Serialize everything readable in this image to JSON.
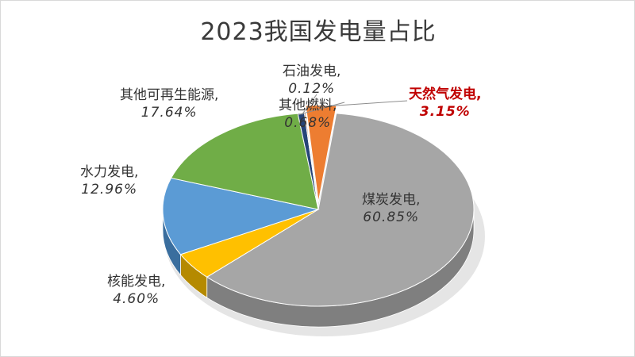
{
  "chart_data": {
    "type": "pie",
    "title": "2023我国发电量占比",
    "unit": "%",
    "slices": [
      {
        "name": "煤炭发电",
        "value": 60.85,
        "label": "煤炭发电,",
        "pct": "60.85%",
        "color": "#a6a6a6",
        "side": "#7f7f7f"
      },
      {
        "name": "核能发电",
        "value": 4.6,
        "label": "核能发电,",
        "pct": "4.60%",
        "color": "#ffc000",
        "side": "#b58a00"
      },
      {
        "name": "水力发电",
        "value": 12.96,
        "label": "水力发电,",
        "pct": "12.96%",
        "color": "#5b9bd5",
        "side": "#3a6e9e"
      },
      {
        "name": "其他可再生能源",
        "value": 17.64,
        "label": "其他可再生能源,",
        "pct": "17.64%",
        "color": "#70ad47",
        "side": "#4f7f30"
      },
      {
        "name": "其他燃料",
        "value": 0.68,
        "label": "其他燃料,",
        "pct": "0.68%",
        "color": "#264478",
        "side": "#1a2f55"
      },
      {
        "name": "石油发电",
        "value": 0.12,
        "label": "石油发电,",
        "pct": "0.12%",
        "color": "#9e480e",
        "side": "#6e320a"
      },
      {
        "name": "天然气发电",
        "value": 3.15,
        "label": "天然气发电,",
        "pct": "3.15%",
        "color": "#ed7d31",
        "side": "#b35d22",
        "highlight": true
      }
    ]
  }
}
